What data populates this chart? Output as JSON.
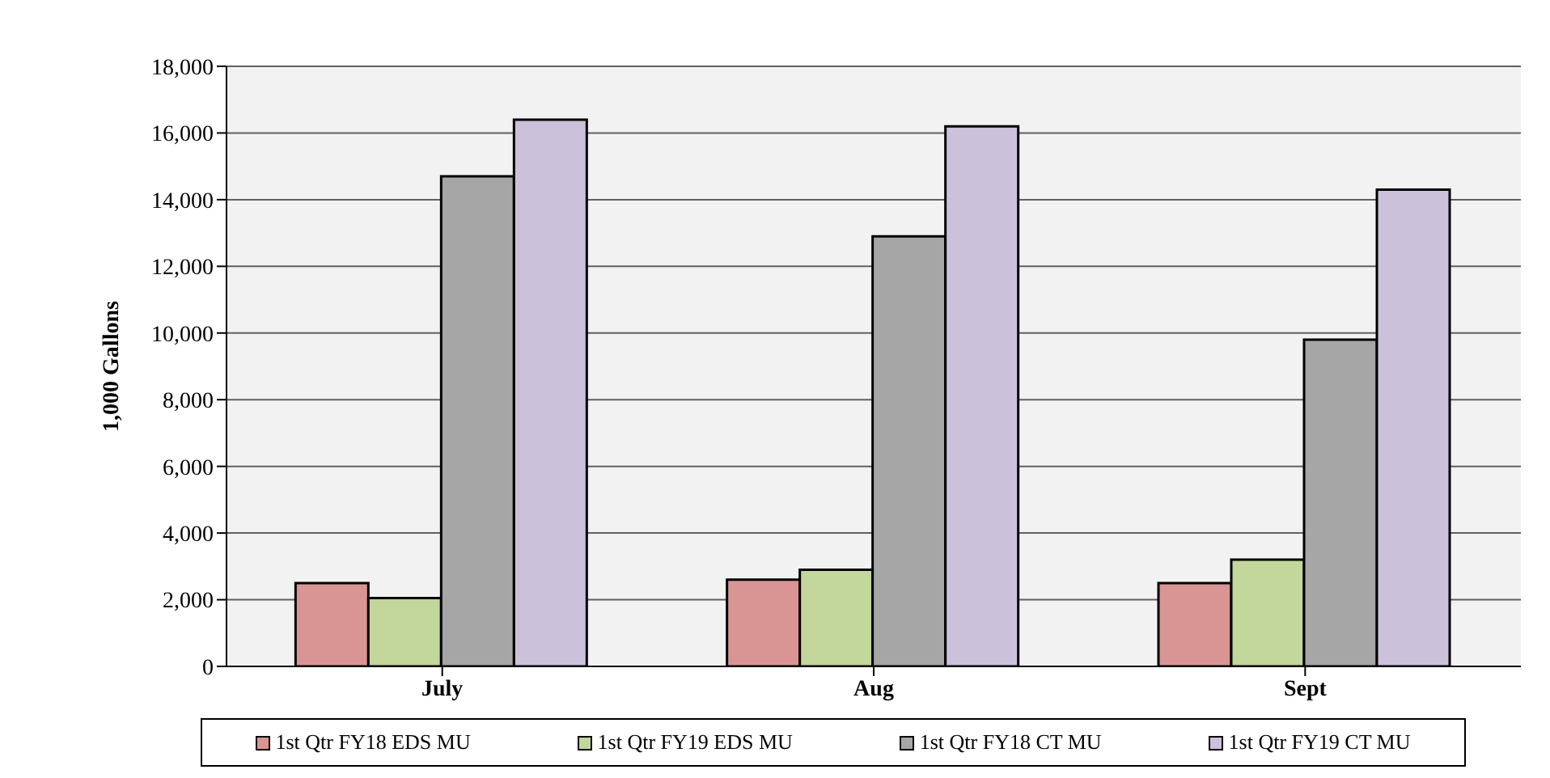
{
  "chart_data": {
    "type": "bar",
    "ylabel": "1,000 Gallons",
    "categories": [
      "July",
      "Aug",
      "Sept"
    ],
    "series": [
      {
        "name": "1st Qtr FY18 EDS MU",
        "color": "#d99594",
        "values": [
          2500,
          2600,
          2500
        ]
      },
      {
        "name": "1st Qtr FY19 EDS MU",
        "color": "#c3d69b",
        "values": [
          2050,
          2900,
          3200
        ]
      },
      {
        "name": "1st Qtr FY18 CT MU",
        "color": "#a6a6a6",
        "values": [
          14700,
          12900,
          9800
        ]
      },
      {
        "name": "1st Qtr FY19 CT MU",
        "color": "#ccc1da",
        "values": [
          16400,
          16200,
          14300
        ]
      }
    ],
    "ylim": [
      0,
      18000
    ],
    "yticks": [
      0,
      {
        "value": 2000,
        "label": "2,000"
      },
      {
        "value": 4000,
        "label": "4,000"
      },
      {
        "value": 6000,
        "label": "6,000"
      },
      {
        "value": 8000,
        "label": "8,000"
      },
      {
        "value": 10000,
        "label": "10,000"
      },
      {
        "value": 12000,
        "label": "12,000"
      },
      {
        "value": 14000,
        "label": "14,000"
      },
      {
        "value": 16000,
        "label": "16,000"
      },
      {
        "value": 18000,
        "label": "18,000"
      }
    ],
    "grid": "y",
    "legend": "bottom"
  }
}
